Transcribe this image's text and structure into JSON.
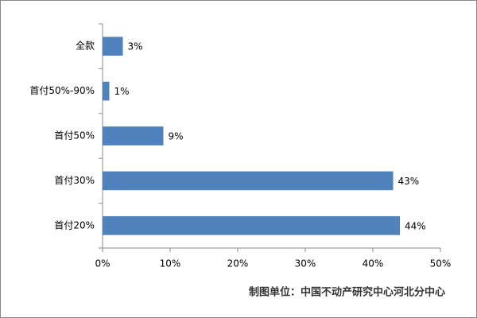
{
  "chart_data": {
    "type": "bar",
    "orientation": "horizontal",
    "categories": [
      "全款",
      "首付50%-90%",
      "首付50%",
      "首付30%",
      "首付20%"
    ],
    "values": [
      3,
      1,
      9,
      43,
      44
    ],
    "value_labels": [
      "3%",
      "1%",
      "9%",
      "43%",
      "44%"
    ],
    "color": "#4f81bd",
    "xlim": [
      0,
      50
    ],
    "xticks": [
      {
        "value": 0,
        "label": "0%"
      },
      {
        "value": 10,
        "label": "10%"
      },
      {
        "value": 20,
        "label": "20%"
      },
      {
        "value": 30,
        "label": "30%"
      },
      {
        "value": 40,
        "label": "40%"
      },
      {
        "value": 50,
        "label": "50%"
      }
    ],
    "grid": false,
    "annotation": "制图单位：中国不动产研究中心河北分中心"
  }
}
